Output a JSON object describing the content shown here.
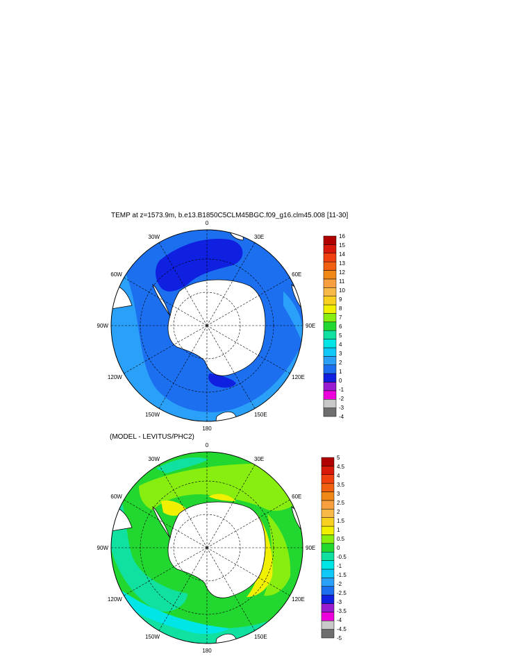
{
  "chart_data": [
    {
      "type": "heatmap",
      "projection": "south-polar-stereographic",
      "title": "TEMP at z=1573.9m, b.e13.B1850C5CLM45BGC.f09_g16.clm45.008 [11-30]",
      "longitude_labels": [
        "0",
        "30E",
        "60E",
        "90E",
        "120E",
        "150E",
        "180",
        "150W",
        "120W",
        "90W",
        "60W",
        "30W"
      ],
      "colorbar": {
        "labels": [
          "-4",
          "-3",
          "-2",
          "-1",
          "0",
          "1",
          "2",
          "3",
          "4",
          "5",
          "6",
          "7",
          "8",
          "9",
          "10",
          "11",
          "12",
          "13",
          "14",
          "15",
          "16"
        ],
        "colors": [
          "#6e6e6e",
          "#c8c8c8",
          "#ee00dd",
          "#9a1cd0",
          "#1020e0",
          "#1c70f0",
          "#2aa0f8",
          "#10c8f8",
          "#00e6e6",
          "#10e0a0",
          "#22d830",
          "#88ee10",
          "#f0f000",
          "#f8d020",
          "#f8b848",
          "#f8a040",
          "#f08818",
          "#f06010",
          "#f04010",
          "#d81808",
          "#b00000"
        ]
      }
    },
    {
      "type": "heatmap",
      "projection": "south-polar-stereographic",
      "title": "(MODEL - LEVITUS/PHC2)",
      "longitude_labels": [
        "0",
        "30E",
        "60E",
        "90E",
        "120E",
        "150E",
        "180",
        "150W",
        "120W",
        "90W",
        "60W",
        "30W"
      ],
      "colorbar": {
        "labels": [
          "-5",
          "-4.5",
          "-4",
          "-3.5",
          "-3",
          "-2.5",
          "-2",
          "-1.5",
          "-1",
          "-0.5",
          "0",
          "0.5",
          "1",
          "1.5",
          "2",
          "2.5",
          "3",
          "3.5",
          "4",
          "4.5",
          "5"
        ],
        "colors": [
          "#6e6e6e",
          "#c8c8c8",
          "#ee00dd",
          "#9a1cd0",
          "#1020e0",
          "#1c70f0",
          "#2aa0f8",
          "#10c8f8",
          "#00e6e6",
          "#10e0a0",
          "#22d830",
          "#88ee10",
          "#f0f000",
          "#f8d020",
          "#f8b848",
          "#f8a040",
          "#f08818",
          "#f06010",
          "#f04010",
          "#d81808",
          "#b00000"
        ]
      }
    }
  ]
}
